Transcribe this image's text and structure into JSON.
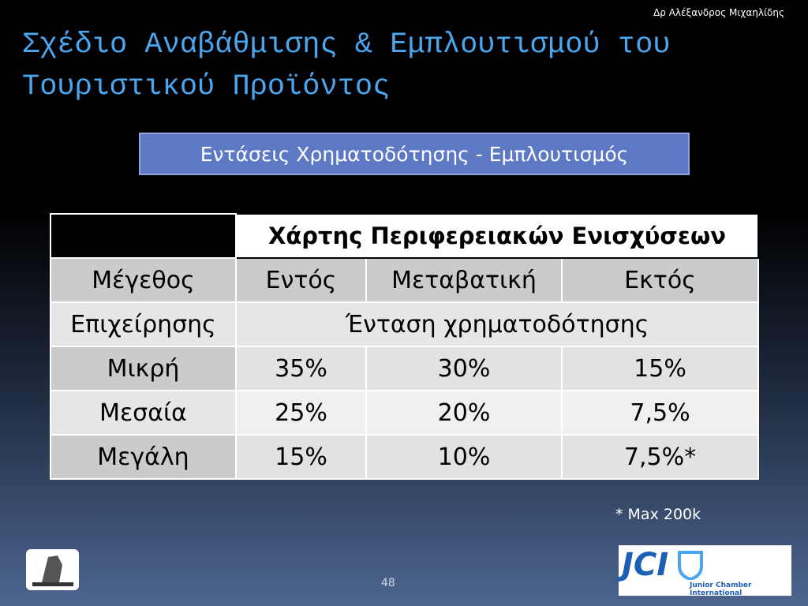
{
  "author": "Δρ Αλέξανδρος Μιχαηλίδης",
  "title": {
    "lines": [
      "Σχέδιο Αναβάθμισης & Εμπλουτισμού του",
      "Τουριστικού Προϊόντος"
    ]
  },
  "subtitle": "Εντάσεις Χρηματοδότησης - Εμπλουτισμός",
  "table": {
    "header": "Χάρτης Περιφερειακών Ενισχύσεων",
    "columns": [
      "Μέγεθος",
      "Εντός",
      "Μεταβατική",
      "Εκτός"
    ],
    "subheader": [
      "Επιχείρησης",
      "Ένταση  χρηματοδότησης"
    ],
    "rows": [
      [
        "Μικρή",
        "35%",
        "30%",
        "15%"
      ],
      [
        "Μεσαία",
        "25%",
        "20%",
        "7,5%"
      ],
      [
        "Μεγάλη",
        "15%",
        "10%",
        "7,5%*"
      ]
    ]
  },
  "footnote": "* Max  200k",
  "page_number": "48",
  "logos": {
    "jci": {
      "name": "JCI",
      "full": "Junior Chamber International"
    }
  }
}
